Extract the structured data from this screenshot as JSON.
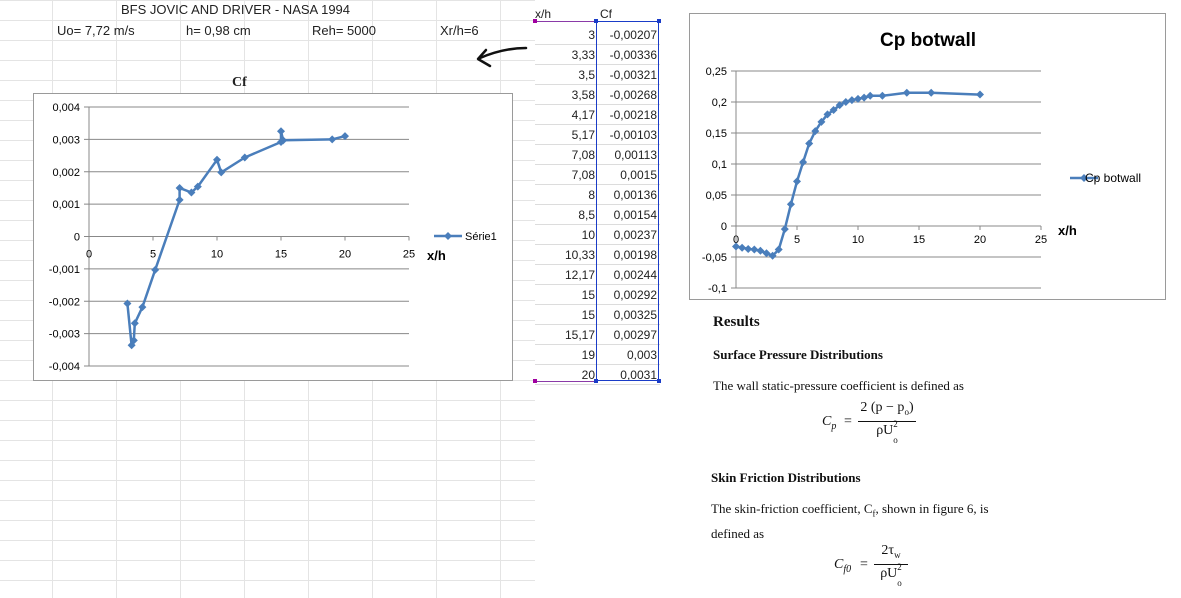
{
  "sheet": {
    "title": "BFS JOVIC AND DRIVER - NASA 1994",
    "uo": "Uo= 7,72 m/s",
    "h": "h= 0,98 cm",
    "reh": "Reh= 5000",
    "xr": "Xr/h=6"
  },
  "table": {
    "headers": {
      "x": "x/h",
      "cf": "Cf"
    },
    "rows": [
      {
        "x": "3",
        "cf": "-0,00207"
      },
      {
        "x": "3,33",
        "cf": "-0,00336"
      },
      {
        "x": "3,5",
        "cf": "-0,00321"
      },
      {
        "x": "3,58",
        "cf": "-0,00268"
      },
      {
        "x": "4,17",
        "cf": "-0,00218"
      },
      {
        "x": "5,17",
        "cf": "-0,00103"
      },
      {
        "x": "7,08",
        "cf": "0,00113"
      },
      {
        "x": "7,08",
        "cf": "0,0015"
      },
      {
        "x": "8",
        "cf": "0,00136"
      },
      {
        "x": "8,5",
        "cf": "0,00154"
      },
      {
        "x": "10",
        "cf": "0,00237"
      },
      {
        "x": "10,33",
        "cf": "0,00198"
      },
      {
        "x": "12,17",
        "cf": "0,00244"
      },
      {
        "x": "15",
        "cf": "0,00292"
      },
      {
        "x": "15",
        "cf": "0,00325"
      },
      {
        "x": "15,17",
        "cf": "0,00297"
      },
      {
        "x": "19",
        "cf": "0,003"
      },
      {
        "x": "20",
        "cf": "0,0031"
      }
    ]
  },
  "chart_data": [
    {
      "type": "scatter",
      "title": "Cf",
      "xlabel": "x/h",
      "ylabel": "",
      "xlim": [
        0,
        25
      ],
      "ylim": [
        -0.004,
        0.004
      ],
      "xticks": [
        "0",
        "5",
        "10",
        "15",
        "20",
        "25"
      ],
      "yticks": [
        "0,004",
        "0,003",
        "0,002",
        "0,001",
        "0",
        "-0,001",
        "-0,002",
        "-0,003",
        "-0,004"
      ],
      "grid": "horizontal",
      "legend_position": "right",
      "series": [
        {
          "name": "Série1",
          "color": "#4a7ebb",
          "x": [
            3,
            3.33,
            3.5,
            3.58,
            4.17,
            5.17,
            7.08,
            7.08,
            8,
            8.5,
            10,
            10.33,
            12.17,
            15,
            15,
            15.17,
            19,
            20
          ],
          "y": [
            -0.00207,
            -0.00336,
            -0.00321,
            -0.00268,
            -0.00218,
            -0.00103,
            0.00113,
            0.0015,
            0.00136,
            0.00154,
            0.00237,
            0.00198,
            0.00244,
            0.00292,
            0.00325,
            0.00297,
            0.003,
            0.0031
          ]
        }
      ]
    },
    {
      "type": "scatter",
      "title": "Cp botwall",
      "xlabel": "x/h",
      "ylabel": "",
      "xlim": [
        0,
        25
      ],
      "ylim": [
        -0.1,
        0.25
      ],
      "xticks": [
        "0",
        "5",
        "10",
        "15",
        "20",
        "25"
      ],
      "yticks": [
        "0,25",
        "0,2",
        "0,15",
        "0,1",
        "0,05",
        "0",
        "-0,05",
        "-0,1"
      ],
      "grid": "horizontal",
      "legend_position": "right",
      "series": [
        {
          "name": "Cp botwall",
          "color": "#4a7ebb",
          "x": [
            0.0,
            0.5,
            1.0,
            1.5,
            2.0,
            2.5,
            3.0,
            3.5,
            4.0,
            4.5,
            5.0,
            5.5,
            6.0,
            6.5,
            7.0,
            7.5,
            8.0,
            8.5,
            9.0,
            9.5,
            10.0,
            10.5,
            11.0,
            12.0,
            14.0,
            16.0,
            20.0
          ],
          "y": [
            -0.033,
            -0.035,
            -0.037,
            -0.038,
            -0.04,
            -0.044,
            -0.048,
            -0.038,
            -0.005,
            0.035,
            0.072,
            0.103,
            0.133,
            0.153,
            0.168,
            0.18,
            0.187,
            0.195,
            0.2,
            0.203,
            0.205,
            0.207,
            0.21,
            0.21,
            0.215,
            0.215,
            0.212
          ]
        }
      ]
    }
  ],
  "paper": {
    "results": "Results",
    "sp_heading": "Surface Pressure Distributions",
    "sp_text": "The wall static-pressure coefficient is defined as",
    "cp_lhs": "C",
    "cp_sub": "p",
    "eq_sign": "=",
    "cp_num": "2 (p − p",
    "cp_num_sub": "o",
    "cp_num_close": ")",
    "cp_den": "ρU",
    "cp_den_sup": "2",
    "cp_den_sub": "o",
    "sf_heading": "Skin Friction Distributions",
    "sf_text1": "The skin-friction coefficient, C",
    "sf_text1_sub": "f",
    "sf_text1_end": ", shown in figure 6, is",
    "sf_text2": "defined as",
    "cf_lhs": "C",
    "cf_sub": "f0",
    "cf_num": "2τ",
    "cf_num_sub": "w",
    "cf_den": "ρU",
    "cf_den_sup": "2",
    "cf_den_sub": "o"
  }
}
